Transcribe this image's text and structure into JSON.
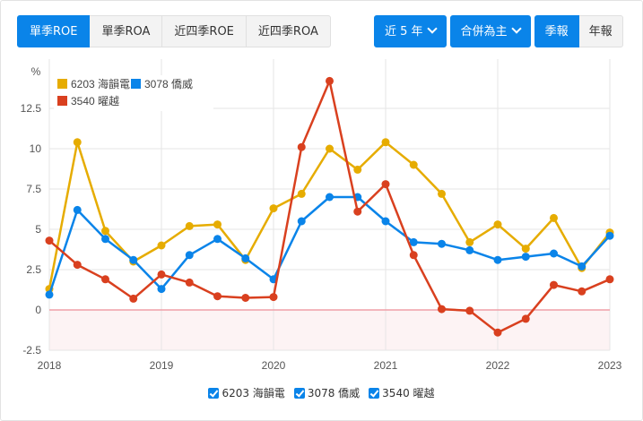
{
  "metric_tabs": [
    {
      "label": "單季ROE",
      "active": true
    },
    {
      "label": "單季ROA",
      "active": false
    },
    {
      "label": "近四季ROE",
      "active": false
    },
    {
      "label": "近四季ROA",
      "active": false
    }
  ],
  "controls": {
    "range_label": "近 5 年",
    "basis_label": "合併為主",
    "period_tabs": [
      {
        "label": "季報",
        "active": true
      },
      {
        "label": "年報",
        "active": false
      }
    ]
  },
  "legend_bottom": [
    {
      "label": "6203 海韻電",
      "checked": true
    },
    {
      "label": "3078 僑威",
      "checked": true
    },
    {
      "label": "3540 曜越",
      "checked": true
    }
  ],
  "chart_data": {
    "type": "line",
    "title": "",
    "ylabel": "%",
    "xlabel": "",
    "ylim": [
      -2.5,
      14.5
    ],
    "yticks": [
      "12.5",
      "10",
      "7.5",
      "5",
      "2.5",
      "0",
      "-2.5"
    ],
    "xticks": [
      "2018",
      "2019",
      "2020",
      "2021",
      "2022",
      "2023"
    ],
    "grid": true,
    "legend_position": "top-left",
    "x": [
      "2018Q1",
      "2018Q2",
      "2018Q3",
      "2018Q4",
      "2019Q1",
      "2019Q2",
      "2019Q3",
      "2019Q4",
      "2020Q1",
      "2020Q2",
      "2020Q3",
      "2020Q4",
      "2021Q1",
      "2021Q2",
      "2021Q3",
      "2021Q4",
      "2022Q1",
      "2022Q2",
      "2022Q3",
      "2022Q4",
      "2023Q1"
    ],
    "series": [
      {
        "name": "6203 海韻電",
        "color": "#e6ac00",
        "values": [
          1.3,
          10.4,
          4.9,
          3.0,
          4.0,
          5.2,
          5.3,
          3.1,
          6.3,
          7.2,
          10.0,
          8.7,
          10.4,
          9.0,
          7.2,
          4.2,
          5.3,
          3.8,
          5.7,
          2.6,
          4.8
        ]
      },
      {
        "name": "3078 僑威",
        "color": "#0a84e9",
        "values": [
          0.95,
          6.2,
          4.4,
          3.1,
          1.3,
          3.4,
          4.4,
          3.2,
          1.9,
          5.5,
          7.0,
          7.0,
          5.5,
          4.2,
          4.1,
          3.7,
          3.1,
          3.3,
          3.5,
          2.7,
          4.6
        ]
      },
      {
        "name": "3540 曜越",
        "color": "#d9401f",
        "values": [
          4.3,
          2.8,
          1.9,
          0.7,
          2.2,
          1.7,
          0.85,
          0.75,
          0.8,
          10.1,
          14.2,
          6.1,
          7.8,
          3.4,
          0.05,
          -0.05,
          -1.4,
          -0.55,
          1.55,
          1.15,
          1.9
        ]
      }
    ],
    "negative_zone_color": "#fdf3f4",
    "zero_line_color": "#f0a0a8"
  }
}
